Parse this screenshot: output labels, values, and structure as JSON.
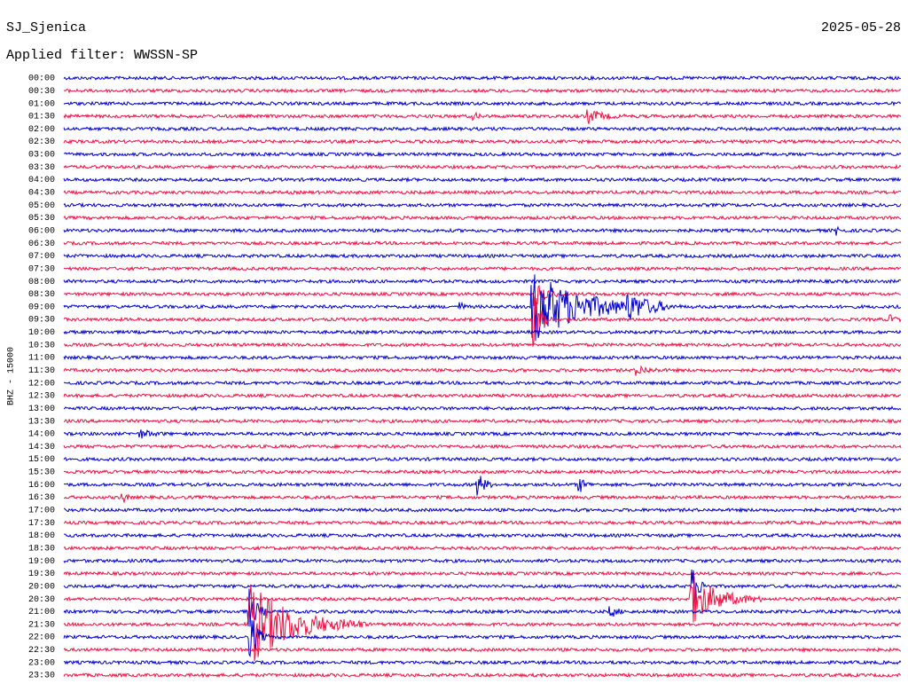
{
  "header": {
    "station": "SJ_Sjenica",
    "date": "2025-05-28",
    "filter": "Applied filter: WWSSN-SP"
  },
  "axis_label": "BHZ - 15000",
  "rows": [
    "00:00",
    "00:30",
    "01:00",
    "01:30",
    "02:00",
    "02:30",
    "03:00",
    "03:30",
    "04:00",
    "04:30",
    "05:00",
    "05:30",
    "06:00",
    "06:30",
    "07:00",
    "07:30",
    "08:00",
    "08:30",
    "09:00",
    "09:30",
    "10:00",
    "10:30",
    "11:00",
    "11:30",
    "12:00",
    "12:30",
    "13:00",
    "13:30",
    "14:00",
    "14:30",
    "15:00",
    "15:30",
    "16:00",
    "16:30",
    "17:00",
    "17:30",
    "18:00",
    "18:30",
    "19:00",
    "19:30",
    "20:00",
    "20:30",
    "21:00",
    "21:30",
    "22:00",
    "22:30",
    "23:00",
    "23:30"
  ],
  "colors": [
    "#0000cc",
    "#ee1144"
  ]
}
